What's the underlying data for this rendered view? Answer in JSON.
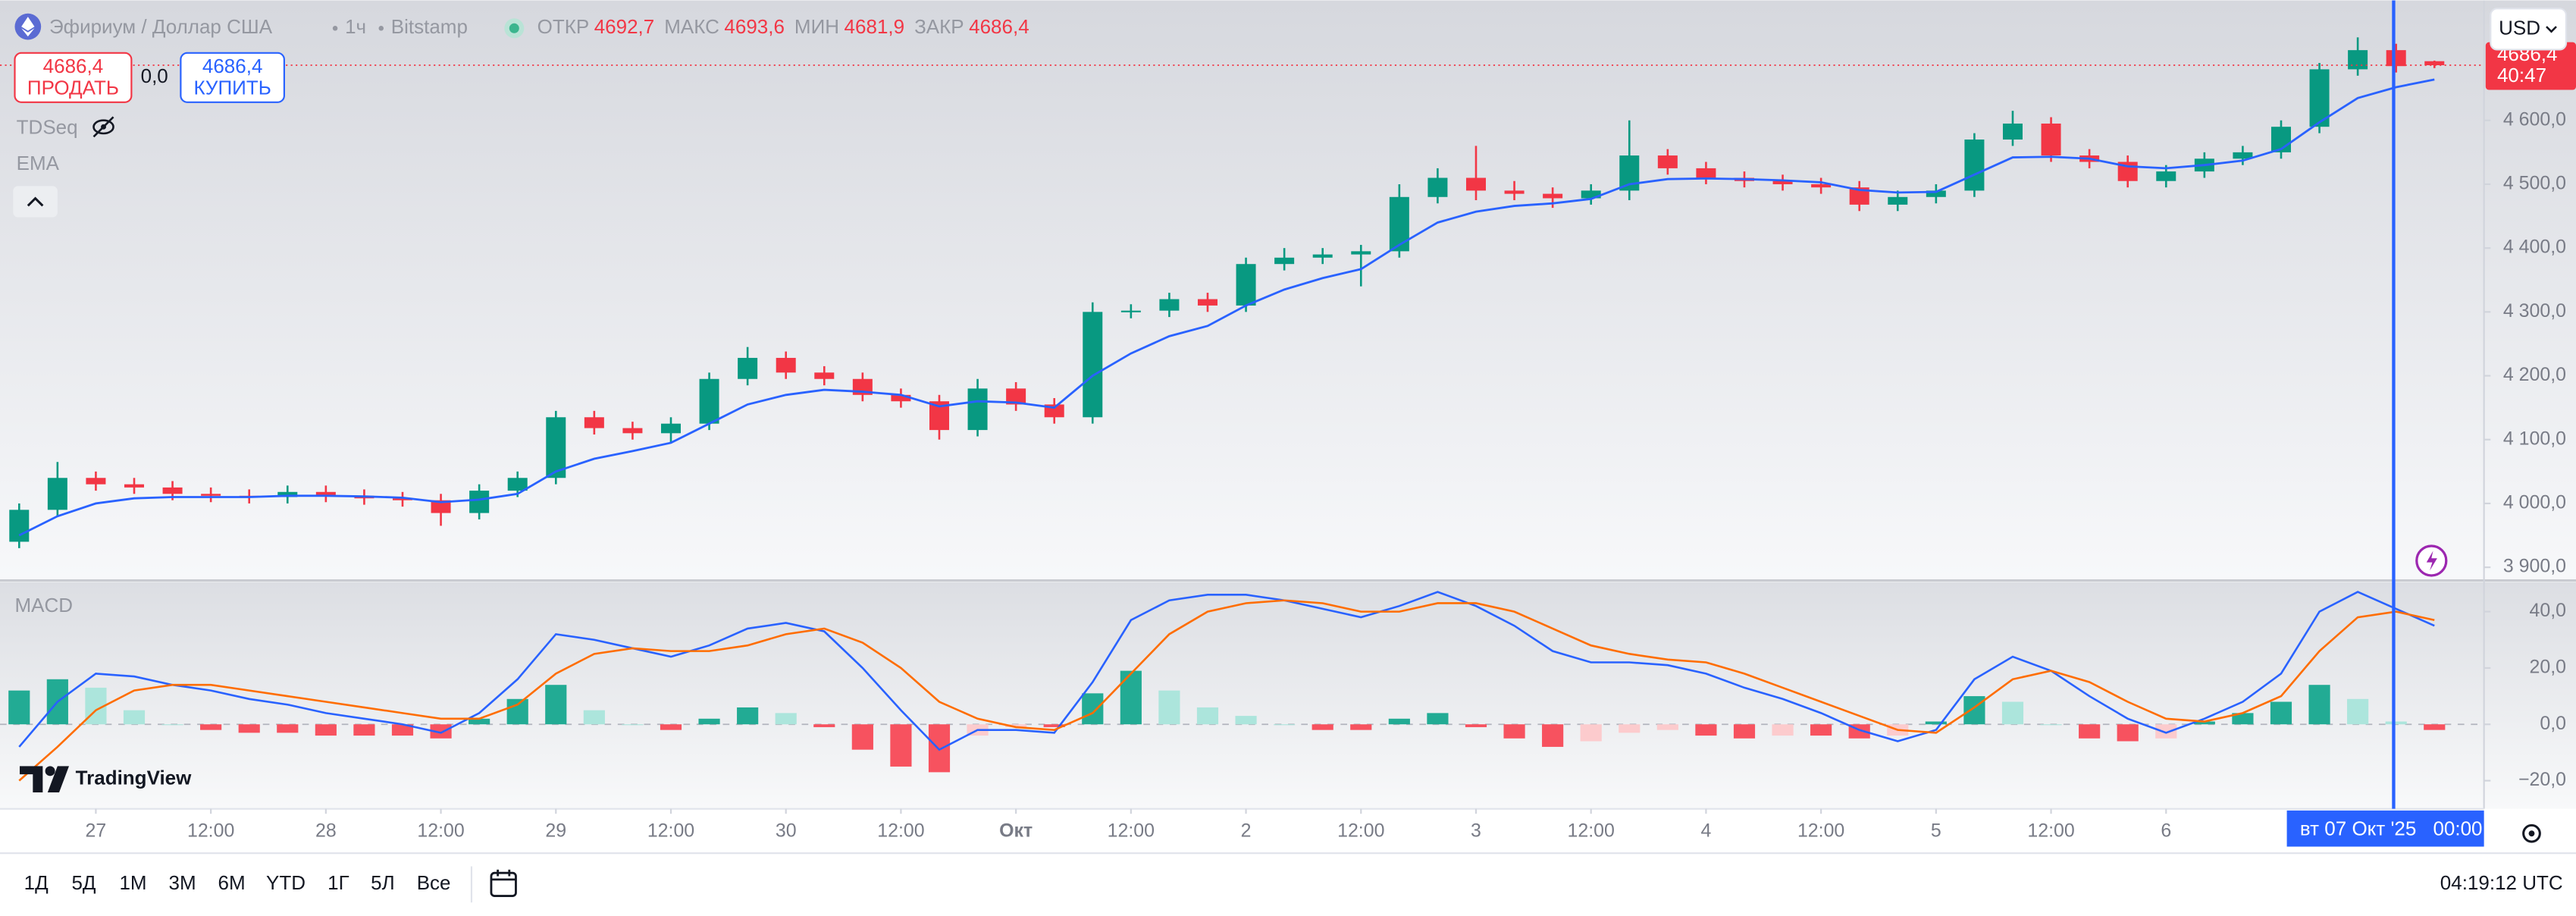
{
  "header": {
    "symbol": "Эфириум / Доллар США",
    "interval": "1ч",
    "exchange": "Bitstamp",
    "ohlc": [
      {
        "label": "ОТКР",
        "value": "4692,7"
      },
      {
        "label": "МАКС",
        "value": "4693,6"
      },
      {
        "label": "МИН",
        "value": "4681,9"
      },
      {
        "label": "ЗАКР",
        "value": "4686,4"
      }
    ]
  },
  "trade": {
    "sell_price": "4686,4",
    "sell": "ПРОДАТЬ",
    "spread": "0,0",
    "buy_price": "4686,4",
    "buy": "КУПИТЬ"
  },
  "indicators": [
    "TDSeq",
    "EMA"
  ],
  "currency": "USD",
  "logo": "TradingView",
  "crosshair": {
    "date": "вт 07 Окт '25",
    "time": "00:00"
  },
  "timeframes": [
    "1Д",
    "5Д",
    "1М",
    "3М",
    "6М",
    "YTD",
    "1Г",
    "5Л",
    "Все"
  ],
  "clock": "04:19:12 UTC",
  "chart_data": [
    {
      "type": "candlestick",
      "x": [
        -8,
        -4,
        0,
        4,
        8,
        12,
        16,
        20,
        24,
        28,
        32,
        36,
        40,
        44,
        48,
        52,
        56,
        60,
        64,
        68,
        72,
        76,
        80,
        84,
        88,
        92,
        96,
        100,
        104,
        108,
        112,
        116,
        120,
        124,
        128,
        132,
        136,
        140,
        144,
        148,
        152,
        156,
        160,
        164,
        168,
        172,
        176,
        180,
        184,
        188,
        192,
        196,
        200,
        204,
        208,
        212,
        216,
        220,
        224,
        228,
        232,
        236,
        240,
        244
      ],
      "open": [
        3940,
        3990,
        4040,
        4030,
        4025,
        4015,
        4012,
        4010,
        4018,
        4012,
        4008,
        4005,
        3985,
        4020,
        4040,
        4135,
        4118,
        4110,
        4125,
        4195,
        4228,
        4205,
        4195,
        4170,
        4160,
        4115,
        4180,
        4155,
        4135,
        4300,
        4302,
        4320,
        4310,
        4375,
        4385,
        4390,
        4395,
        4480,
        4510,
        4490,
        4485,
        4478,
        4490,
        4545,
        4525,
        4510,
        4505,
        4500,
        4495,
        4468,
        4480,
        4490,
        4570,
        4595,
        4545,
        4535,
        4505,
        4520,
        4540,
        4550,
        4590,
        4680,
        4710,
        4692.7
      ],
      "high": [
        4000,
        4065,
        4050,
        4040,
        4035,
        4025,
        4022,
        4028,
        4028,
        4022,
        4018,
        4015,
        4030,
        4050,
        4145,
        4145,
        4128,
        4135,
        4205,
        4245,
        4238,
        4215,
        4205,
        4180,
        4170,
        4195,
        4190,
        4165,
        4315,
        4312,
        4330,
        4330,
        4385,
        4400,
        4400,
        4405,
        4500,
        4525,
        4560,
        4505,
        4495,
        4500,
        4600,
        4555,
        4535,
        4520,
        4515,
        4510,
        4505,
        4490,
        4500,
        4580,
        4615,
        4605,
        4555,
        4545,
        4530,
        4550,
        4560,
        4600,
        4690,
        4730,
        4720,
        4693.6
      ],
      "low": [
        3930,
        3980,
        4020,
        4015,
        4005,
        4002,
        4000,
        4000,
        4002,
        3998,
        3995,
        3965,
        3975,
        4010,
        4030,
        4108,
        4100,
        4095,
        4115,
        4185,
        4195,
        4185,
        4160,
        4150,
        4100,
        4105,
        4145,
        4125,
        4125,
        4290,
        4292,
        4300,
        4300,
        4365,
        4375,
        4340,
        4385,
        4470,
        4475,
        4475,
        4463,
        4468,
        4475,
        4515,
        4500,
        4495,
        4490,
        4485,
        4458,
        4458,
        4470,
        4480,
        4560,
        4535,
        4525,
        4495,
        4495,
        4510,
        4530,
        4540,
        4580,
        4670,
        4675,
        4681.9
      ],
      "close": [
        3990,
        4040,
        4030,
        4025,
        4015,
        4012,
        4010,
        4018,
        4012,
        4008,
        4005,
        3985,
        4020,
        4040,
        4135,
        4118,
        4110,
        4125,
        4195,
        4228,
        4205,
        4195,
        4170,
        4160,
        4115,
        4180,
        4155,
        4135,
        4300,
        4302,
        4320,
        4310,
        4375,
        4385,
        4390,
        4395,
        4480,
        4510,
        4490,
        4485,
        4478,
        4490,
        4545,
        4525,
        4510,
        4505,
        4500,
        4495,
        4468,
        4480,
        4490,
        4570,
        4595,
        4545,
        4535,
        4505,
        4520,
        4540,
        4550,
        4590,
        4680,
        4710,
        4685,
        4686.4
      ],
      "series": [
        {
          "name": "EMA",
          "color": "#2962ff",
          "values": [
            3950,
            3980,
            4000,
            4008,
            4010,
            4010,
            4010,
            4012,
            4012,
            4011,
            4009,
            4002,
            4006,
            4015,
            4050,
            4070,
            4082,
            4095,
            4125,
            4155,
            4170,
            4178,
            4175,
            4170,
            4152,
            4160,
            4158,
            4150,
            4200,
            4235,
            4262,
            4278,
            4310,
            4335,
            4353,
            4367,
            4405,
            4440,
            4457,
            4466,
            4470,
            4477,
            4500,
            4508,
            4509,
            4508,
            4506,
            4503,
            4491,
            4487,
            4488,
            4515,
            4542,
            4543,
            4540,
            4528,
            4525,
            4530,
            4537,
            4555,
            4597,
            4635,
            4652,
            4664
          ]
        }
      ],
      "colors": {
        "up": "#089981",
        "down": "#f23645"
      },
      "last_price_label": "4686,4",
      "countdown": "40:47",
      "xlim": [
        -10,
        249
      ],
      "xticks": [
        {
          "value": 0,
          "label": "27"
        },
        {
          "value": 12,
          "label": "12:00"
        },
        {
          "value": 24,
          "label": "28"
        },
        {
          "value": 36,
          "label": "12:00"
        },
        {
          "value": 48,
          "label": "29"
        },
        {
          "value": 60,
          "label": "12:00"
        },
        {
          "value": 72,
          "label": "30"
        },
        {
          "value": 84,
          "label": "12:00"
        },
        {
          "value": 96,
          "label": "Окт"
        },
        {
          "value": 108,
          "label": "12:00"
        },
        {
          "value": 120,
          "label": "2"
        },
        {
          "value": 132,
          "label": "12:00"
        },
        {
          "value": 144,
          "label": "3"
        },
        {
          "value": 156,
          "label": "12:00"
        },
        {
          "value": 168,
          "label": "4"
        },
        {
          "value": 180,
          "label": "12:00"
        },
        {
          "value": 192,
          "label": "5"
        },
        {
          "value": 204,
          "label": "12:00"
        },
        {
          "value": 216,
          "label": "6"
        }
      ],
      "ylim": [
        3882,
        4788
      ],
      "yticks": [
        {
          "value": 3900,
          "label": "3 900,0"
        },
        {
          "value": 4000,
          "label": "4 000,0"
        },
        {
          "value": 4100,
          "label": "4 100,0"
        },
        {
          "value": 4200,
          "label": "4 200,0"
        },
        {
          "value": 4300,
          "label": "4 300,0"
        },
        {
          "value": 4400,
          "label": "4 400,0"
        },
        {
          "value": 4500,
          "label": "4 500,0"
        },
        {
          "value": 4600,
          "label": "4 600,0"
        }
      ],
      "grid": false
    },
    {
      "type": "macd",
      "title": "MACD",
      "series": [
        {
          "color": "#2962ff",
          "values": [
            -8,
            8,
            18,
            17,
            14,
            12,
            9,
            7,
            4,
            2,
            0,
            -3,
            4,
            16,
            32,
            30,
            27,
            24,
            28,
            34,
            36,
            33,
            20,
            5,
            -9,
            -2,
            -2,
            -3,
            15,
            37,
            44,
            46,
            46,
            44,
            41,
            38,
            42,
            47,
            42,
            35,
            26,
            22,
            22,
            21,
            18,
            13,
            9,
            4,
            -2,
            -6,
            -2,
            16,
            24,
            19,
            10,
            2,
            -3,
            2,
            8,
            18,
            40,
            47,
            41,
            35
          ]
        },
        {
          "color": "#ff6d00",
          "values": [
            -20,
            -8,
            5,
            12,
            14,
            14,
            12,
            10,
            8,
            6,
            4,
            2,
            2,
            7,
            18,
            25,
            27,
            26,
            26,
            28,
            32,
            34,
            29,
            20,
            8,
            2,
            -1,
            -2,
            4,
            18,
            32,
            40,
            43,
            44,
            43,
            40,
            40,
            43,
            43,
            40,
            34,
            28,
            25,
            23,
            22,
            18,
            13,
            8,
            3,
            -2,
            -3,
            6,
            16,
            19,
            15,
            8,
            2,
            1,
            4,
            10,
            26,
            38,
            40,
            37
          ]
        }
      ],
      "histogram": [
        12,
        16,
        13,
        5,
        0,
        -2,
        -3,
        -3,
        -4,
        -4,
        -4,
        -5,
        2,
        9,
        14,
        5,
        0,
        -2,
        2,
        6,
        4,
        -1,
        -9,
        -15,
        -17,
        -4,
        -1,
        -1,
        11,
        19,
        12,
        6,
        3,
        0,
        -2,
        -2,
        2,
        4,
        -1,
        -5,
        -8,
        -6,
        -3,
        -2,
        -4,
        -5,
        -4,
        -4,
        -5,
        -4,
        1,
        10,
        8,
        0,
        -5,
        -6,
        -5,
        1,
        4,
        8,
        14,
        9,
        1,
        -2
      ],
      "histogram_colors": {
        "up_rising": "#22ab94",
        "up_falling": "#ace5dc",
        "down_falling": "#f7525f",
        "down_rising": "#fccbcd"
      },
      "ylim": [
        -30,
        50.5
      ],
      "yticks": [
        {
          "value": 40,
          "label": "40,0"
        },
        {
          "value": 20,
          "label": "20,0"
        },
        {
          "value": 0,
          "label": "0,0"
        },
        {
          "value": -20,
          "label": "−20,0"
        }
      ]
    }
  ]
}
